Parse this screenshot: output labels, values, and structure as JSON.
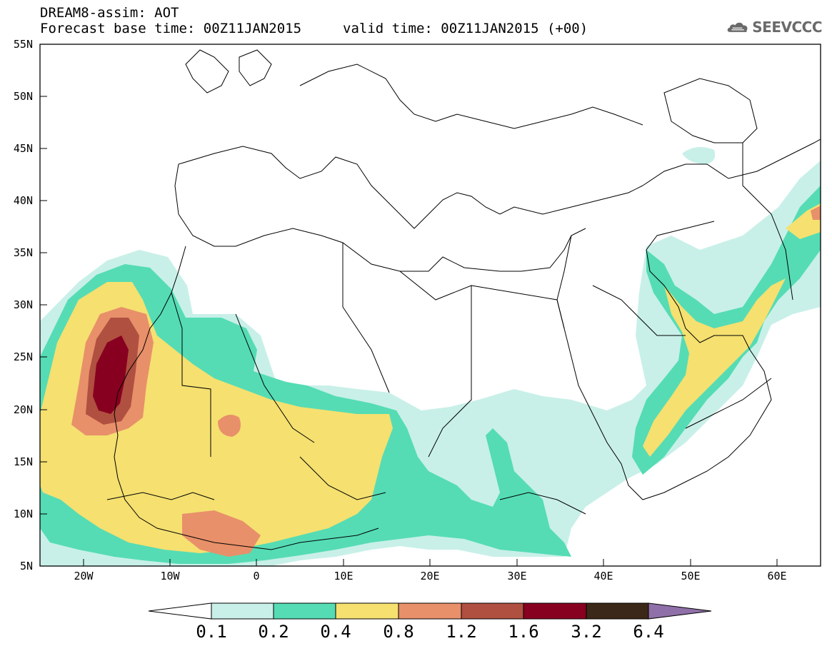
{
  "header": {
    "title": "DREAM8-assim: AOT",
    "forecast_base": "Forecast base time: 00Z11JAN2015",
    "valid_time": "valid time: 00Z11JAN2015 (+00)",
    "logo_text": "SEEVCCC"
  },
  "map": {
    "region": "North Africa, Mediterranean and Middle East",
    "lon_range": [
      -25,
      65
    ],
    "lat_range": [
      5,
      55
    ],
    "lat_labels": [
      "55N",
      "50N",
      "45N",
      "40N",
      "35N",
      "30N",
      "25N",
      "20N",
      "15N",
      "10N",
      "5N"
    ],
    "lon_labels": [
      "20W",
      "10W",
      "0",
      "10E",
      "20E",
      "30E",
      "40E",
      "50E",
      "60E"
    ]
  },
  "colorbar": {
    "labels": [
      "0.1",
      "0.2",
      "0.4",
      "0.8",
      "1.2",
      "1.6",
      "3.2",
      "6.4"
    ],
    "colors": [
      "#ffffff",
      "#c8f0e8",
      "#55dcb4",
      "#f5e070",
      "#e8906a",
      "#b05040",
      "#880020",
      "#3c2818",
      "#9070a8"
    ]
  },
  "field_colors": {
    "c02": "#c8f0e8",
    "c04": "#55dcb4",
    "c08": "#f5e070",
    "c12": "#e8906a",
    "c16": "#b05040",
    "c32": "#880020"
  }
}
